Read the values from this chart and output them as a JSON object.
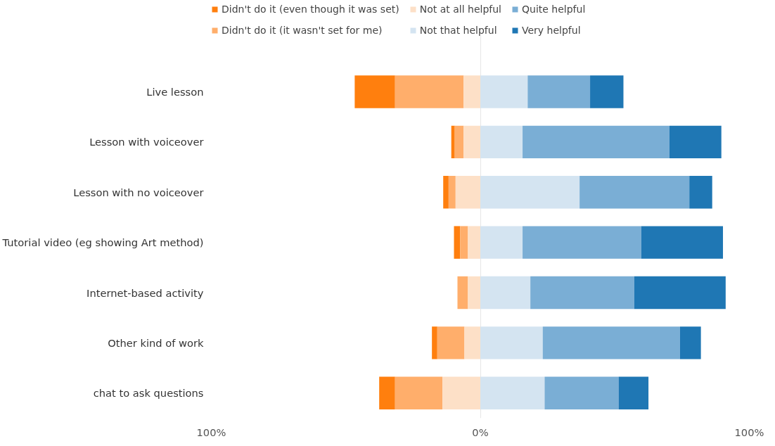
{
  "chart_data": {
    "type": "bar",
    "orientation": "horizontal",
    "stacked": true,
    "categories": [
      "Live lesson",
      "Lesson with voiceover",
      "Lesson with no voiceover",
      "Tutorial video (eg showing Art method)",
      "Internet-based activity",
      "Other kind of work",
      "chat to ask questions"
    ],
    "series": [
      {
        "name": "Didn't do it (even though it was set)",
        "color": "#ff7f0e",
        "values": [
          -15.0,
          -1.3,
          -2.0,
          -2.3,
          0,
          -2.0,
          -5.9
        ]
      },
      {
        "name": "Didn't do it (it wasn't set for me)",
        "color": "#ffae6b",
        "values": [
          -25.5,
          -3.3,
          -2.6,
          -2.9,
          -3.9,
          -10.1,
          -17.6
        ]
      },
      {
        "name": "Not at all helpful",
        "color": "#fde0c7",
        "values": [
          -6.2,
          -6.2,
          -9.2,
          -4.6,
          -4.6,
          -5.9,
          -14.1
        ]
      },
      {
        "name": "Not that helpful",
        "color": "#d4e4f1",
        "values": [
          17.6,
          15.7,
          36.9,
          15.7,
          18.6,
          23.2,
          23.9
        ]
      },
      {
        "name": "Quite helpful",
        "color": "#7aaed5",
        "values": [
          23.2,
          54.6,
          40.8,
          44.1,
          38.6,
          51.0,
          27.5
        ]
      },
      {
        "name": "Very helpful",
        "color": "#1f77b4",
        "values": [
          12.4,
          19.3,
          8.5,
          30.4,
          34.0,
          7.8,
          11.1
        ]
      }
    ],
    "xlim": [
      -100,
      100
    ],
    "xticks": [
      {
        "value": -100,
        "label": "100%"
      },
      {
        "value": 0,
        "label": "0%"
      },
      {
        "value": 100,
        "label": "100%"
      }
    ],
    "grid": "x",
    "legend": "top"
  }
}
